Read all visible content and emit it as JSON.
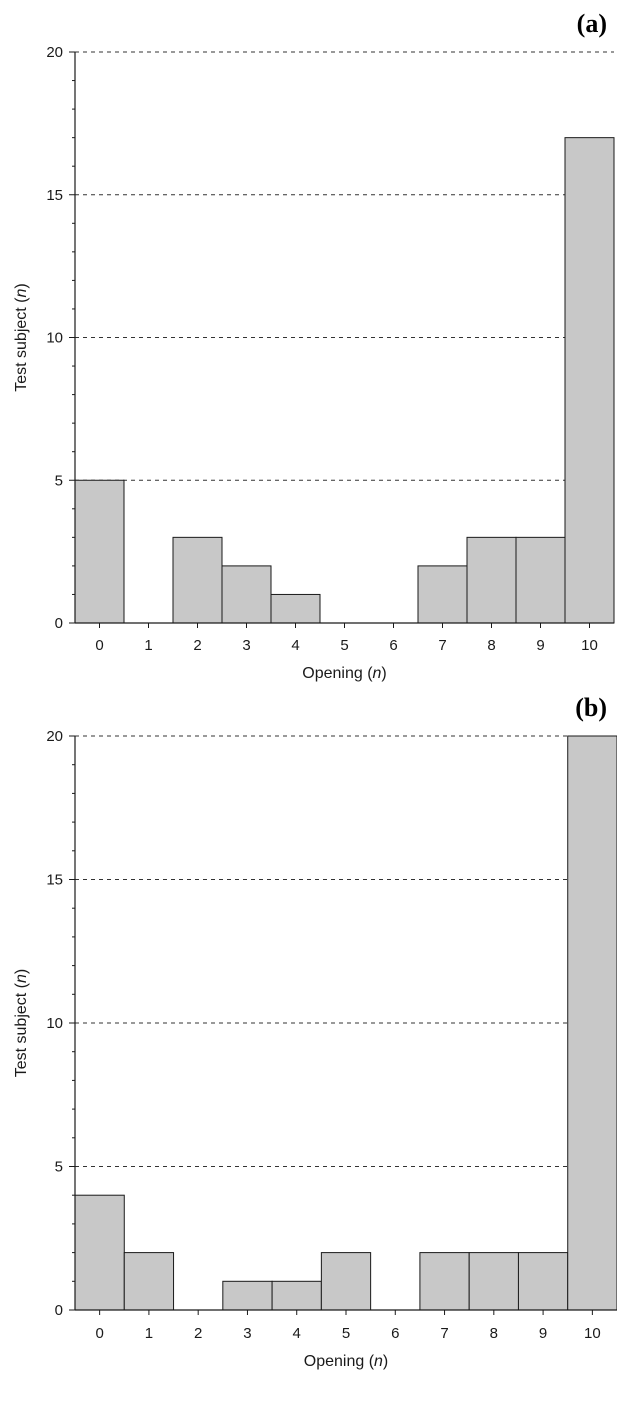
{
  "chart_data": [
    {
      "type": "bar",
      "panel_label": "(a)",
      "categories": [
        "0",
        "1",
        "2",
        "3",
        "4",
        "5",
        "6",
        "7",
        "8",
        "9",
        "10"
      ],
      "values": [
        5,
        0,
        3,
        2,
        1,
        0,
        0,
        2,
        3,
        3,
        17
      ],
      "xlabel": {
        "text": "Opening",
        "var": "n"
      },
      "ylabel": {
        "text": "Test subject",
        "var": "n"
      },
      "ylim": [
        0,
        20
      ],
      "yticks": [
        "0",
        "5",
        "10",
        "15",
        "20"
      ],
      "grid": "horizontal dashed",
      "bar_color": "#c8c8c8"
    },
    {
      "type": "bar",
      "panel_label": "(b)",
      "categories": [
        "0",
        "1",
        "2",
        "3",
        "4",
        "5",
        "6",
        "7",
        "8",
        "9",
        "10"
      ],
      "values": [
        4,
        2,
        0,
        1,
        1,
        2,
        0,
        2,
        2,
        2,
        20
      ],
      "xlabel": {
        "text": "Opening",
        "var": "n"
      },
      "ylabel": {
        "text": "Test subject",
        "var": "n"
      },
      "ylim": [
        0,
        20
      ],
      "yticks": [
        "0",
        "5",
        "10",
        "15",
        "20"
      ],
      "grid": "horizontal dashed",
      "bar_color": "#c8c8c8"
    }
  ]
}
